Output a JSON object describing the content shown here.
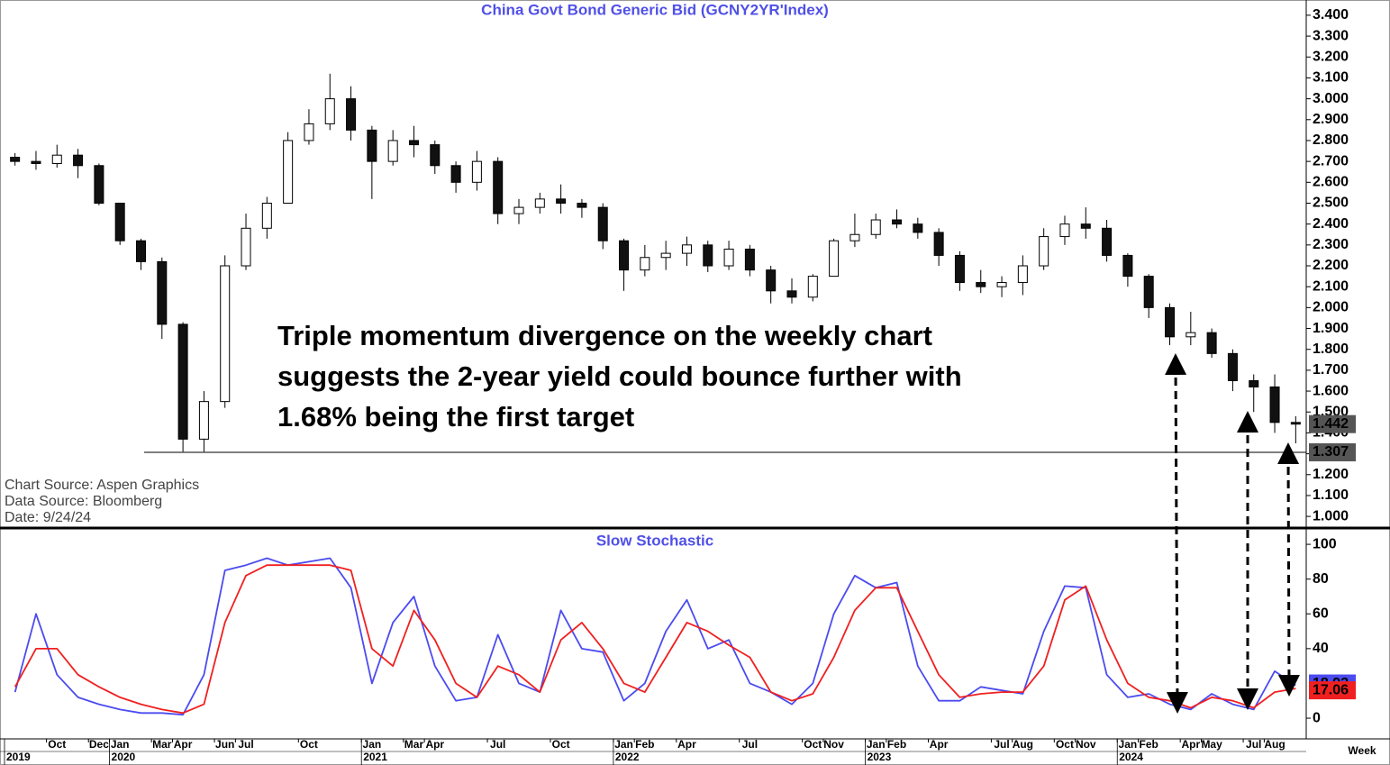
{
  "chart_data": [
    {
      "type": "candlestick",
      "title": "China  Govt  Bond  Generic  Bid  (GCNY2YR'Index)",
      "x": [
        "2019-08",
        "2019-09",
        "2019-10",
        "2019-11",
        "2019-12",
        "2020-01",
        "2020-02",
        "2020-03",
        "2020-04",
        "2020-05",
        "2020-06",
        "2020-07",
        "2020-08",
        "2020-09",
        "2020-10",
        "2020-11",
        "2020-12",
        "2021-01",
        "2021-02",
        "2021-03",
        "2021-04",
        "2021-05",
        "2021-06",
        "2021-07",
        "2021-08",
        "2021-09",
        "2021-10",
        "2021-11",
        "2021-12",
        "2022-01",
        "2022-02",
        "2022-03",
        "2022-04",
        "2022-05",
        "2022-06",
        "2022-07",
        "2022-08",
        "2022-09",
        "2022-10",
        "2022-11",
        "2022-12",
        "2023-01",
        "2023-02",
        "2023-03",
        "2023-04",
        "2023-05",
        "2023-06",
        "2023-07",
        "2023-08",
        "2023-09",
        "2023-10",
        "2023-11",
        "2023-12",
        "2024-01",
        "2024-02",
        "2024-03",
        "2024-04",
        "2024-05",
        "2024-06",
        "2024-07",
        "2024-08",
        "2024-09"
      ],
      "open": [
        2.72,
        2.7,
        2.69,
        2.73,
        2.68,
        2.5,
        2.32,
        2.22,
        1.92,
        1.37,
        1.55,
        2.2,
        2.38,
        2.5,
        2.8,
        2.88,
        3.0,
        2.85,
        2.7,
        2.8,
        2.78,
        2.68,
        2.6,
        2.7,
        2.45,
        2.48,
        2.52,
        2.5,
        2.48,
        2.32,
        2.18,
        2.24,
        2.26,
        2.3,
        2.2,
        2.28,
        2.18,
        2.08,
        2.05,
        2.15,
        2.32,
        2.35,
        2.42,
        2.4,
        2.36,
        2.25,
        2.12,
        2.1,
        2.12,
        2.2,
        2.34,
        2.4,
        2.38,
        2.25,
        2.15,
        2.0,
        1.86,
        1.88,
        1.78,
        1.65,
        1.62,
        1.45
      ],
      "high": [
        2.74,
        2.75,
        2.78,
        2.76,
        2.69,
        2.5,
        2.33,
        2.24,
        1.93,
        1.6,
        2.25,
        2.45,
        2.53,
        2.84,
        2.95,
        3.12,
        3.06,
        2.87,
        2.85,
        2.87,
        2.8,
        2.7,
        2.75,
        2.72,
        2.52,
        2.55,
        2.59,
        2.52,
        2.5,
        2.33,
        2.3,
        2.32,
        2.34,
        2.32,
        2.32,
        2.3,
        2.2,
        2.14,
        2.16,
        2.33,
        2.45,
        2.45,
        2.47,
        2.43,
        2.38,
        2.27,
        2.18,
        2.15,
        2.25,
        2.38,
        2.44,
        2.48,
        2.42,
        2.26,
        2.16,
        2.02,
        1.98,
        1.9,
        1.8,
        1.68,
        1.68,
        1.48
      ],
      "low": [
        2.68,
        2.66,
        2.67,
        2.62,
        2.49,
        2.3,
        2.18,
        1.85,
        1.31,
        1.31,
        1.52,
        2.18,
        2.33,
        2.5,
        2.78,
        2.85,
        2.8,
        2.52,
        2.68,
        2.72,
        2.64,
        2.55,
        2.56,
        2.4,
        2.4,
        2.45,
        2.45,
        2.43,
        2.28,
        2.08,
        2.15,
        2.18,
        2.2,
        2.17,
        2.18,
        2.15,
        2.02,
        2.02,
        2.03,
        2.15,
        2.29,
        2.33,
        2.38,
        2.33,
        2.2,
        2.08,
        2.07,
        2.05,
        2.06,
        2.18,
        2.3,
        2.33,
        2.22,
        2.1,
        1.95,
        1.82,
        1.82,
        1.76,
        1.6,
        1.5,
        1.4,
        1.35
      ],
      "close": [
        2.7,
        2.69,
        2.73,
        2.68,
        2.5,
        2.32,
        2.22,
        1.92,
        1.37,
        1.55,
        2.2,
        2.38,
        2.5,
        2.8,
        2.88,
        3.0,
        2.85,
        2.7,
        2.8,
        2.78,
        2.68,
        2.6,
        2.7,
        2.45,
        2.48,
        2.52,
        2.5,
        2.48,
        2.32,
        2.18,
        2.24,
        2.26,
        2.3,
        2.2,
        2.28,
        2.18,
        2.08,
        2.05,
        2.15,
        2.32,
        2.35,
        2.42,
        2.4,
        2.36,
        2.25,
        2.12,
        2.1,
        2.12,
        2.2,
        2.34,
        2.4,
        2.38,
        2.25,
        2.15,
        2.0,
        1.86,
        1.88,
        1.78,
        1.65,
        1.62,
        1.45,
        1.442
      ],
      "support_level": 1.307,
      "ylim": [
        0.953,
        3.473
      ],
      "yticks": [
        {
          "value": 1.0,
          "label": "1.000"
        },
        {
          "value": 1.1,
          "label": "1.100"
        },
        {
          "value": 1.2,
          "label": "1.200"
        },
        {
          "value": 1.3,
          "label": "1.300"
        },
        {
          "value": 1.4,
          "label": "1.400"
        },
        {
          "value": 1.5,
          "label": "1.500"
        },
        {
          "value": 1.6,
          "label": "1.600"
        },
        {
          "value": 1.7,
          "label": "1.700"
        },
        {
          "value": 1.8,
          "label": "1.800"
        },
        {
          "value": 1.9,
          "label": "1.900"
        },
        {
          "value": 2.0,
          "label": "2.000"
        },
        {
          "value": 2.1,
          "label": "2.100"
        },
        {
          "value": 2.2,
          "label": "2.200"
        },
        {
          "value": 2.3,
          "label": "2.300"
        },
        {
          "value": 2.4,
          "label": "2.400"
        },
        {
          "value": 2.5,
          "label": "2.500"
        },
        {
          "value": 2.6,
          "label": "2.600"
        },
        {
          "value": 2.7,
          "label": "2.700"
        },
        {
          "value": 2.8,
          "label": "2.800"
        },
        {
          "value": 2.9,
          "label": "2.900"
        },
        {
          "value": 3.0,
          "label": "3.000"
        },
        {
          "value": 3.1,
          "label": "3.100"
        },
        {
          "value": 3.2,
          "label": "3.200"
        },
        {
          "value": 3.3,
          "label": "3.300"
        },
        {
          "value": 3.4,
          "label": "3.400"
        }
      ],
      "annotation": [
        "Triple momentum divergence on the weekly chart",
        "suggests the 2-year yield could bounce further with",
        "1.68% being the first target"
      ],
      "source_lines": [
        "Chart  Source:  Aspen  Graphics",
        "Data  Source:  Bloomberg",
        "Date:    9/24/24"
      ]
    },
    {
      "type": "line",
      "title": "Slow  Stochastic",
      "x": [
        "2019-08",
        "2019-09",
        "2019-10",
        "2019-11",
        "2019-12",
        "2020-01",
        "2020-02",
        "2020-03",
        "2020-04",
        "2020-05",
        "2020-06",
        "2020-07",
        "2020-08",
        "2020-09",
        "2020-10",
        "2020-11",
        "2020-12",
        "2021-01",
        "2021-02",
        "2021-03",
        "2021-04",
        "2021-05",
        "2021-06",
        "2021-07",
        "2021-08",
        "2021-09",
        "2021-10",
        "2021-11",
        "2021-12",
        "2022-01",
        "2022-02",
        "2022-03",
        "2022-04",
        "2022-05",
        "2022-06",
        "2022-07",
        "2022-08",
        "2022-09",
        "2022-10",
        "2022-11",
        "2022-12",
        "2023-01",
        "2023-02",
        "2023-03",
        "2023-04",
        "2023-05",
        "2023-06",
        "2023-07",
        "2023-08",
        "2023-09",
        "2023-10",
        "2023-11",
        "2023-12",
        "2024-01",
        "2024-02",
        "2024-03",
        "2024-04",
        "2024-05",
        "2024-06",
        "2024-07",
        "2024-08",
        "2024-09"
      ],
      "series": [
        {
          "color": "#4b4bf0",
          "values": [
            15,
            60,
            25,
            12,
            8,
            5,
            3,
            3,
            2,
            25,
            85,
            88,
            92,
            88,
            90,
            92,
            75,
            20,
            55,
            70,
            30,
            10,
            12,
            48,
            20,
            15,
            62,
            40,
            38,
            10,
            20,
            50,
            68,
            40,
            45,
            20,
            15,
            8,
            20,
            60,
            82,
            75,
            78,
            30,
            10,
            10,
            18,
            16,
            14,
            50,
            76,
            75,
            25,
            12,
            14,
            8,
            5,
            14,
            8,
            5,
            27,
            18.92
          ]
        },
        {
          "color": "#f02020",
          "values": [
            18,
            40,
            40,
            25,
            18,
            12,
            8,
            5,
            3,
            8,
            55,
            82,
            88,
            88,
            88,
            88,
            85,
            40,
            30,
            62,
            45,
            20,
            12,
            30,
            25,
            15,
            45,
            55,
            40,
            20,
            15,
            35,
            55,
            50,
            42,
            35,
            15,
            10,
            14,
            35,
            62,
            75,
            75,
            50,
            25,
            12,
            14,
            15,
            15,
            30,
            68,
            76,
            45,
            20,
            12,
            10,
            6,
            12,
            10,
            6,
            15,
            17.06
          ]
        }
      ],
      "ylim": [
        -11.9,
        107.3
      ],
      "yticks": [
        0,
        40,
        60,
        80,
        100
      ],
      "xlim": [
        "2019-08",
        "2024-10"
      ],
      "xticks": [
        {
          "value": "2019-10",
          "label": "Oct"
        },
        {
          "value": "2019-12",
          "label": "Dec"
        },
        {
          "value": "2020-01",
          "label": "Jan"
        },
        {
          "value": "2020-03",
          "label": "Mar"
        },
        {
          "value": "2020-04",
          "label": "Apr"
        },
        {
          "value": "2020-06",
          "label": "Jun"
        },
        {
          "value": "2020-07",
          "label": "Jul"
        },
        {
          "value": "2020-10",
          "label": "Oct"
        },
        {
          "value": "2021-01",
          "label": "Jan"
        },
        {
          "value": "2021-03",
          "label": "Mar"
        },
        {
          "value": "2021-04",
          "label": "Apr"
        },
        {
          "value": "2021-07",
          "label": "Jul"
        },
        {
          "value": "2021-10",
          "label": "Oct"
        },
        {
          "value": "2022-01",
          "label": "Jan"
        },
        {
          "value": "2022-02",
          "label": "Feb"
        },
        {
          "value": "2022-04",
          "label": "Apr"
        },
        {
          "value": "2022-07",
          "label": "Jul"
        },
        {
          "value": "2022-10",
          "label": "Oct"
        },
        {
          "value": "2022-11",
          "label": "Nov"
        },
        {
          "value": "2023-01",
          "label": "Jan"
        },
        {
          "value": "2023-02",
          "label": "Feb"
        },
        {
          "value": "2023-04",
          "label": "Apr"
        },
        {
          "value": "2023-07",
          "label": "Jul"
        },
        {
          "value": "2023-08",
          "label": "Aug"
        },
        {
          "value": "2023-10",
          "label": "Oct"
        },
        {
          "value": "2023-11",
          "label": "Nov"
        },
        {
          "value": "2024-01",
          "label": "Jan"
        },
        {
          "value": "2024-02",
          "label": "Feb"
        },
        {
          "value": "2024-04",
          "label": "Apr"
        },
        {
          "value": "2024-05",
          "label": "May"
        },
        {
          "value": "2024-07",
          "label": "Jul"
        },
        {
          "value": "2024-08",
          "label": "Aug"
        }
      ],
      "xyears": [
        "2019",
        "2020",
        "2021",
        "2022",
        "2023",
        "2024"
      ],
      "x_label": "Week"
    }
  ]
}
